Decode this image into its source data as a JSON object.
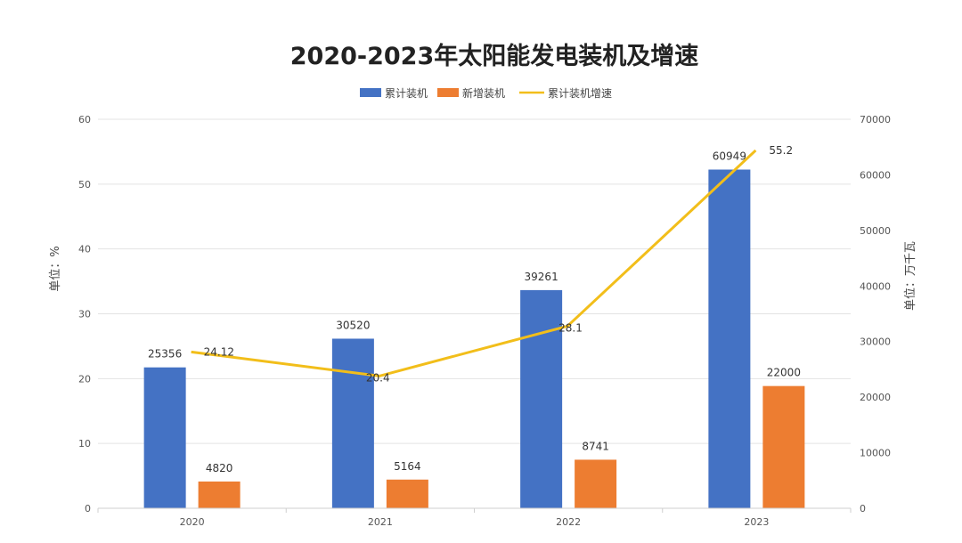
{
  "chart_data": {
    "type": "bar",
    "title": "2020-2023年太阳能发电装机及增速",
    "categories": [
      "2020",
      "2021",
      "2022",
      "2023"
    ],
    "series": [
      {
        "name": "累计装机",
        "type": "bar",
        "axis": "right",
        "values": [
          25356,
          30520,
          39261,
          60949
        ],
        "color": "#4472C4"
      },
      {
        "name": "新增装机",
        "type": "bar",
        "axis": "right",
        "values": [
          4820,
          5164,
          8741,
          22000
        ],
        "color": "#ED7D31"
      },
      {
        "name": "累计装机增速",
        "type": "line",
        "axis": "left",
        "values": [
          24.12,
          20.4,
          28.1,
          55.2
        ],
        "color": "#F2BE1A"
      }
    ],
    "y_left": {
      "label": "单位：%",
      "ylim": [
        0,
        60
      ],
      "ticks": [
        "0",
        "10",
        "20",
        "30",
        "40",
        "50",
        "60"
      ]
    },
    "y_right": {
      "label": "单位：万千瓦",
      "ylim": [
        0,
        70000
      ],
      "ticks": [
        "0",
        "10000",
        "20000",
        "30000",
        "40000",
        "50000",
        "60000",
        "70000"
      ]
    },
    "legend": "top-center",
    "grid": true
  }
}
